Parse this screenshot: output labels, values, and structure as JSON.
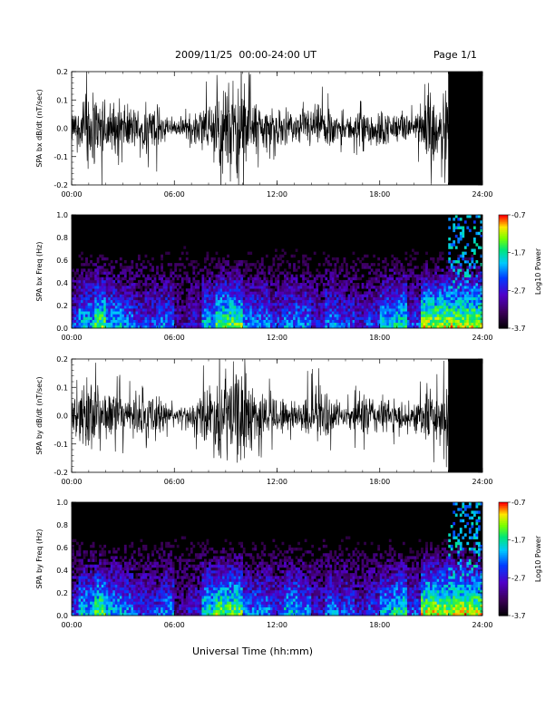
{
  "header": {
    "date_range": "2009/11/25  00:00-24:00 UT",
    "page": "Page 1/1"
  },
  "chart_data": [
    {
      "type": "line",
      "ylabel": "SPA bx dB/dt (nT/sec)",
      "ylim": [
        -0.2,
        0.2
      ],
      "yticks": [
        "0.2",
        "0.1",
        "0.0",
        "-0.1",
        "-0.2"
      ],
      "xticks": [
        "00:00",
        "06:00",
        "12:00",
        "18:00",
        "24:00"
      ],
      "xlim_hours": [
        0,
        24
      ],
      "series": [
        {
          "values_envelope": {
            "hours": [
              0,
              0.5,
              1,
              1.5,
              2,
              3,
              4,
              5,
              6,
              7,
              8,
              9,
              10,
              11,
              12,
              13,
              14,
              15,
              16,
              17,
              18,
              19,
              20,
              20.5,
              21,
              21.5,
              22,
              22.5,
              23,
              23.5,
              24
            ],
            "amplitude": [
              0.06,
              0.09,
              0.2,
              0.14,
              0.12,
              0.1,
              0.08,
              0.1,
              0.03,
              0.05,
              0.12,
              0.2,
              0.2,
              0.1,
              0.08,
              0.06,
              0.1,
              0.09,
              0.04,
              0.1,
              0.08,
              0.06,
              0.05,
              0.12,
              0.2,
              0.08,
              0.2,
              0.2,
              0.2,
              0.2,
              0.2
            ]
          }
        }
      ]
    },
    {
      "type": "heatmap",
      "ylabel": "SPA bx Freq (Hz)",
      "ylim": [
        0.0,
        1.0
      ],
      "yticks": [
        "1.0",
        "0.8",
        "0.6",
        "0.4",
        "0.2",
        "0.0"
      ],
      "xticks": [
        "00:00",
        "06:00",
        "12:00",
        "18:00",
        "24:00"
      ],
      "colorbar": {
        "label": "Log10 Power",
        "ticks": [
          "-0.7",
          "-1.7",
          "-2.7",
          "-3.7"
        ]
      },
      "activity": [
        0.5,
        0.7,
        0.9,
        0.7,
        0.6,
        0.5,
        0.5,
        0.6,
        0.3,
        0.4,
        0.7,
        0.9,
        0.9,
        0.6,
        0.6,
        0.5,
        0.6,
        0.6,
        0.4,
        0.6,
        0.5,
        0.4,
        0.5,
        0.7,
        0.8,
        0.5,
        1.0,
        1.0,
        1.0,
        1.0,
        1.0
      ]
    },
    {
      "type": "line",
      "ylabel": "SPA by dB/dt (nT/sec)",
      "ylim": [
        -0.2,
        0.2
      ],
      "yticks": [
        "0.2",
        "0.1",
        "0.0",
        "-0.1",
        "-0.2"
      ],
      "xticks": [
        "00:00",
        "06:00",
        "12:00",
        "18:00",
        "24:00"
      ],
      "xlim_hours": [
        0,
        24
      ],
      "series": [
        {
          "values_envelope": {
            "hours": [
              0,
              0.5,
              1,
              1.5,
              2,
              3,
              4,
              5,
              6,
              7,
              8,
              9,
              10,
              11,
              12,
              13,
              14,
              15,
              16,
              17,
              18,
              19,
              20,
              20.5,
              21,
              21.5,
              22,
              22.5,
              23,
              23.5,
              24
            ],
            "amplitude": [
              0.05,
              0.1,
              0.2,
              0.12,
              0.1,
              0.09,
              0.07,
              0.09,
              0.03,
              0.05,
              0.14,
              0.2,
              0.2,
              0.1,
              0.09,
              0.06,
              0.12,
              0.09,
              0.04,
              0.1,
              0.08,
              0.07,
              0.06,
              0.1,
              0.14,
              0.07,
              0.2,
              0.2,
              0.2,
              0.2,
              0.2
            ]
          }
        }
      ]
    },
    {
      "type": "heatmap",
      "ylabel": "SPA by Freq (Hz)",
      "ylim": [
        0.0,
        1.0
      ],
      "yticks": [
        "1.0",
        "0.8",
        "0.6",
        "0.4",
        "0.2",
        "0.0"
      ],
      "xticks": [
        "00:00",
        "06:00",
        "12:00",
        "18:00",
        "24:00"
      ],
      "colorbar": {
        "label": "Log10 Power",
        "ticks": [
          "-0.7",
          "-1.7",
          "-2.7",
          "-3.7"
        ]
      },
      "activity": [
        0.5,
        0.7,
        0.9,
        0.7,
        0.6,
        0.5,
        0.5,
        0.6,
        0.3,
        0.4,
        0.8,
        0.9,
        0.9,
        0.6,
        0.6,
        0.5,
        0.7,
        0.6,
        0.4,
        0.6,
        0.5,
        0.4,
        0.5,
        0.7,
        0.8,
        0.5,
        1.0,
        1.0,
        1.0,
        1.0,
        1.0
      ]
    }
  ],
  "xlabel": "Universal Time (hh:mm)",
  "colors": {
    "background": "#ffffff",
    "trace": "#000000",
    "spectrogram_bg": "#000000"
  }
}
